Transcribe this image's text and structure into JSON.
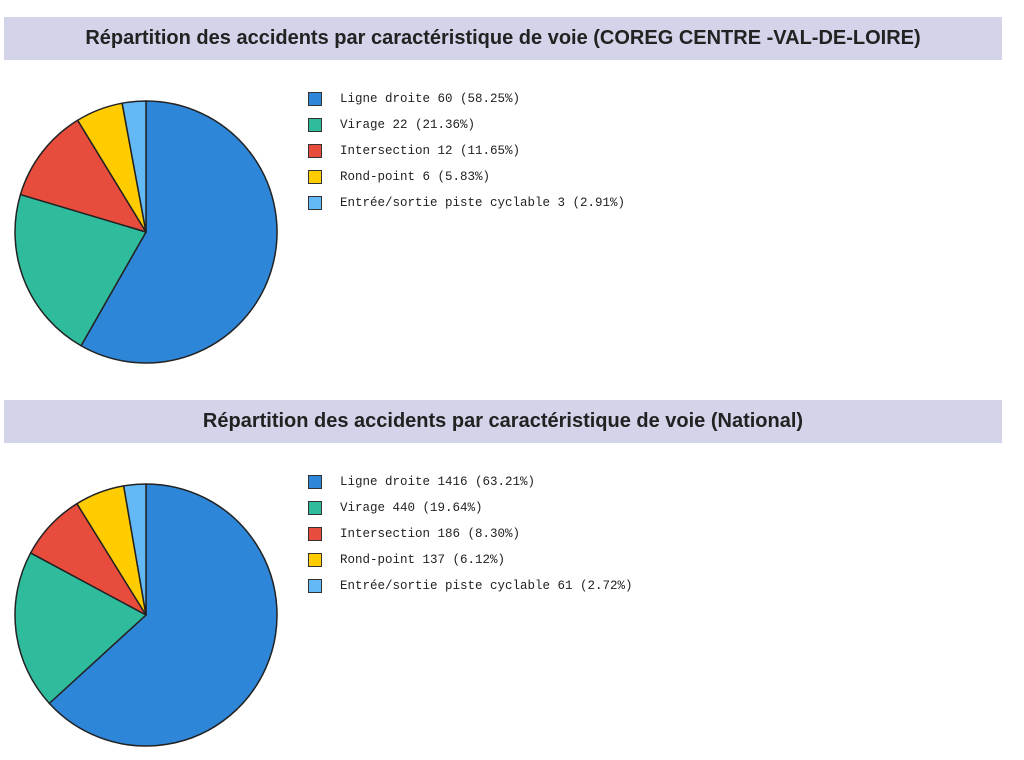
{
  "chart_data": [
    {
      "type": "pie",
      "title": "Répartition des accidents par caractéristique de voie (COREG CENTRE -VAL-DE-LOIRE)",
      "categories": [
        "Ligne droite",
        "Virage",
        "Intersection",
        "Rond-point",
        "Entrée/sortie piste cyclable"
      ],
      "values": [
        60,
        22,
        12,
        6,
        3
      ],
      "legend_labels": [
        "Ligne droite 60 (58.25%)",
        "Virage 22 (21.36%)",
        "Intersection 12 (11.65%)",
        "Rond-point 6 (5.83%)",
        "Entrée/sortie piste cyclable 3 (2.91%)"
      ],
      "colors": [
        "#2e86d9",
        "#2fbc9c",
        "#e84c3d",
        "#ffcc00",
        "#62b9f5"
      ],
      "legend_position": "right"
    },
    {
      "type": "pie",
      "title": "Répartition des accidents par caractéristique de voie (National)",
      "categories": [
        "Ligne droite",
        "Virage",
        "Intersection",
        "Rond-point",
        "Entrée/sortie piste cyclable"
      ],
      "values": [
        1416,
        440,
        186,
        137,
        61
      ],
      "legend_labels": [
        "Ligne droite 1416 (63.21%)",
        "Virage 440 (19.64%)",
        "Intersection 186 (8.30%)",
        "Rond-point 137 (6.12%)",
        "Entrée/sortie piste cyclable 61 (2.72%)"
      ],
      "colors": [
        "#2e86d9",
        "#2fbc9c",
        "#e84c3d",
        "#ffcc00",
        "#62b9f5"
      ],
      "legend_position": "right"
    }
  ]
}
